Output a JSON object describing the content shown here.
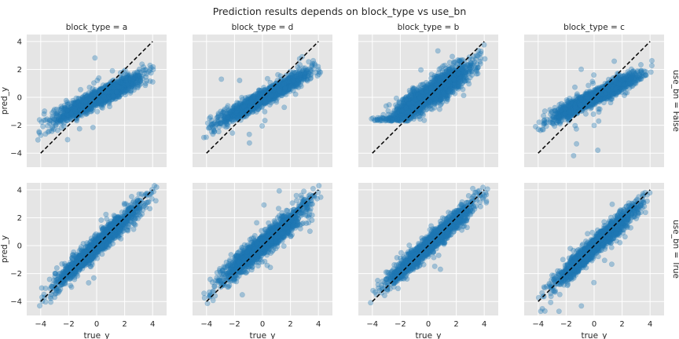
{
  "chart_data": {
    "type": "scatter",
    "title": "Prediction results depends on block_type vs use_bn",
    "xlabel": "true_y",
    "ylabel": "pred_y",
    "col_titles": [
      "block_type = a",
      "block_type = d",
      "block_type = b",
      "block_type = c"
    ],
    "row_titles": [
      "use_bn = False",
      "use_bn = True"
    ],
    "xlim": [
      -5,
      5
    ],
    "ylim": [
      -5,
      4.5
    ],
    "xticks": [
      -4,
      -2,
      0,
      2,
      4
    ],
    "yticks": [
      -4,
      -2,
      0,
      2,
      4
    ],
    "grid": true,
    "reference_line": {
      "style": "dashed",
      "color": "#000000",
      "from": [
        -4,
        -4
      ],
      "to": [
        4,
        4
      ]
    },
    "point_color": "#1f77b4",
    "point_alpha": 0.35,
    "panels": [
      {
        "row": 0,
        "col": 0,
        "block_type": "a",
        "use_bn": "False",
        "x_range": [
          -4.2,
          4.2
        ],
        "slope": 0.5,
        "intercept": -0.1,
        "noise": 0.25
      },
      {
        "row": 0,
        "col": 1,
        "block_type": "d",
        "use_bn": "False",
        "x_range": [
          -4.2,
          4.2
        ],
        "slope": 0.55,
        "intercept": -0.05,
        "noise": 0.22
      },
      {
        "row": 0,
        "col": 2,
        "block_type": "b",
        "use_bn": "False",
        "x_range": [
          -4.2,
          4.2
        ],
        "slope": 0.65,
        "intercept": 0.15,
        "noise": 0.4,
        "floor": -1.7
      },
      {
        "row": 0,
        "col": 3,
        "block_type": "c",
        "use_bn": "False",
        "x_range": [
          -4.2,
          4.2
        ],
        "slope": 0.48,
        "intercept": 0.0,
        "noise": 0.22
      },
      {
        "row": 1,
        "col": 0,
        "block_type": "a",
        "use_bn": "True",
        "x_range": [
          -4.2,
          4.3
        ],
        "slope": 0.95,
        "intercept": 0.0,
        "noise": 0.3
      },
      {
        "row": 1,
        "col": 1,
        "block_type": "d",
        "use_bn": "True",
        "x_range": [
          -4.2,
          4.2
        ],
        "slope": 0.85,
        "intercept": 0.05,
        "noise": 0.35
      },
      {
        "row": 1,
        "col": 2,
        "block_type": "b",
        "use_bn": "True",
        "x_range": [
          -4.2,
          4.3
        ],
        "slope": 0.92,
        "intercept": 0.0,
        "noise": 0.28
      },
      {
        "row": 1,
        "col": 3,
        "block_type": "c",
        "use_bn": "True",
        "x_range": [
          -4.0,
          4.1
        ],
        "slope": 0.95,
        "intercept": -0.1,
        "noise": 0.3
      }
    ]
  }
}
